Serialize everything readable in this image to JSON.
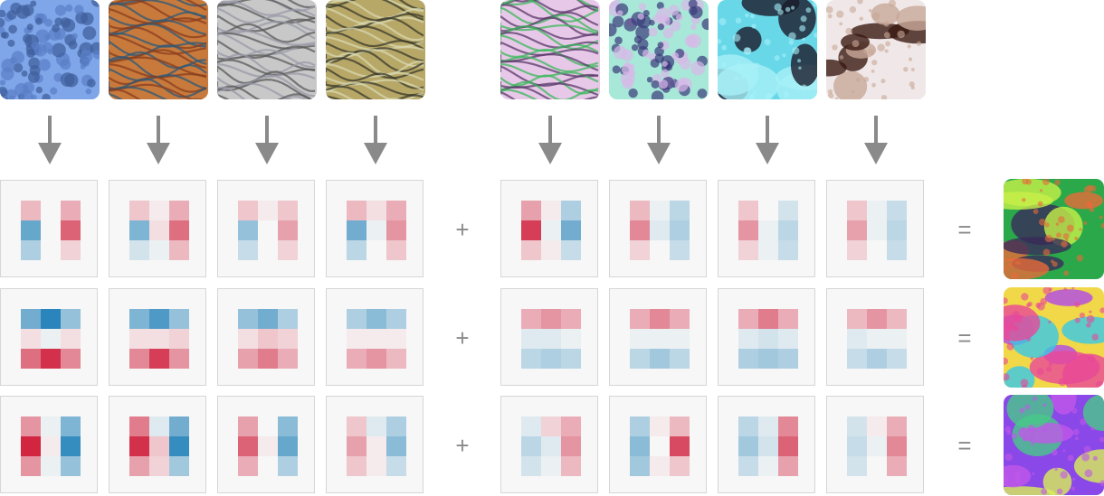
{
  "operators": {
    "plus": "+",
    "equals": "="
  },
  "colors": {
    "arrow": "#8a8a8a",
    "cell_background": "#f7f7f7",
    "cell_border": "#d6d6d6",
    "positive": "#ca0020",
    "negative": "#0571b0",
    "neutral": "#f7f7f7"
  },
  "top_images": [
    {
      "name": "texture-blue-mesh",
      "colors": [
        "#7fa6e8",
        "#5a7fc8",
        "#3d5c9a"
      ]
    },
    {
      "name": "texture-orange-stripes",
      "colors": [
        "#c87a3c",
        "#2c5a7a",
        "#8a3c1e"
      ]
    },
    {
      "name": "texture-gray-diagonal",
      "colors": [
        "#c8c8c8",
        "#5a5a5a",
        "#9a9aa8"
      ]
    },
    {
      "name": "texture-olive-waves",
      "colors": [
        "#b8a868",
        "#3a3a2a",
        "#d8d8b0"
      ]
    },
    {
      "name": "texture-magenta-green-waves",
      "colors": [
        "#e8c8e8",
        "#5a3a6a",
        "#3ab85a"
      ]
    },
    {
      "name": "texture-cyan-bubbles",
      "colors": [
        "#a8e8d8",
        "#3a3a7a",
        "#d8b8e8"
      ]
    },
    {
      "name": "texture-cyan-blobs",
      "colors": [
        "#68d8e8",
        "#1a1a2a",
        "#a8f0f8"
      ]
    },
    {
      "name": "texture-white-brown-blobs",
      "colors": [
        "#f0e8e8",
        "#3a1a12",
        "#c8a898"
      ]
    }
  ],
  "rows": [
    {
      "kernels": [
        [
          0.25,
          0,
          0.3,
          -0.6,
          0,
          0.6,
          -0.3,
          0,
          0.15
        ],
        [
          0.2,
          0.05,
          0.3,
          -0.5,
          0.1,
          0.55,
          -0.15,
          -0.05,
          0.25
        ],
        [
          0.2,
          0.05,
          0.2,
          -0.4,
          0,
          0.35,
          -0.2,
          0,
          0.15
        ],
        [
          0.25,
          0.1,
          0.3,
          -0.55,
          -0.05,
          0.4,
          -0.25,
          0,
          0.2
        ]
      ],
      "kernels_right": [
        [
          0.35,
          0.05,
          -0.3,
          0.75,
          -0.05,
          -0.55,
          0.2,
          0.05,
          -0.2
        ],
        [
          0.25,
          -0.05,
          -0.25,
          0.45,
          -0.1,
          -0.3,
          0.15,
          0,
          -0.2
        ],
        [
          0.2,
          0,
          -0.15,
          0.4,
          -0.05,
          -0.25,
          0.15,
          -0.05,
          -0.2
        ],
        [
          0.2,
          -0.05,
          -0.2,
          0.35,
          -0.05,
          -0.25,
          0.15,
          0,
          -0.2
        ]
      ],
      "result": {
        "name": "result-image-1",
        "colors": [
          "#2aa84a",
          "#c8f048",
          "#3a2a5a",
          "#e86a3a"
        ]
      }
    },
    {
      "kernels": [
        [
          -0.55,
          -0.85,
          -0.4,
          0.1,
          -0.05,
          0.1,
          0.55,
          0.8,
          0.45
        ],
        [
          -0.5,
          -0.7,
          -0.4,
          0.1,
          0.1,
          0.15,
          0.45,
          0.75,
          0.4
        ],
        [
          -0.4,
          -0.55,
          -0.3,
          0.1,
          0.2,
          0.15,
          0.35,
          0.5,
          0.3
        ],
        [
          -0.3,
          -0.45,
          -0.3,
          0.05,
          0.05,
          0.05,
          0.3,
          0.4,
          0.25
        ]
      ],
      "kernels_right": [
        [
          0.3,
          0.4,
          0.3,
          -0.1,
          -0.1,
          -0.05,
          -0.25,
          -0.3,
          -0.25
        ],
        [
          0.3,
          0.45,
          0.3,
          -0.05,
          -0.05,
          -0.05,
          -0.25,
          -0.35,
          -0.25
        ],
        [
          0.3,
          0.5,
          0.3,
          -0.1,
          -0.15,
          -0.1,
          -0.3,
          -0.35,
          -0.3
        ],
        [
          0.25,
          0.4,
          0.25,
          -0.1,
          -0.05,
          -0.05,
          -0.2,
          -0.3,
          -0.2
        ]
      ],
      "result": {
        "name": "result-image-2",
        "colors": [
          "#f0d848",
          "#b048e8",
          "#38c8e8",
          "#e84898"
        ]
      }
    },
    {
      "kernels": [
        [
          0.4,
          -0.05,
          -0.5,
          0.85,
          0.05,
          -0.8,
          0.4,
          -0.05,
          -0.4
        ],
        [
          0.5,
          -0.1,
          -0.55,
          0.8,
          0.2,
          -0.8,
          0.35,
          0.15,
          -0.35
        ],
        [
          0.35,
          0,
          -0.45,
          0.6,
          0.05,
          -0.6,
          0.3,
          0,
          -0.3
        ],
        [
          0.2,
          -0.1,
          -0.3,
          0.35,
          0.05,
          -0.45,
          0.2,
          0.05,
          -0.2
        ]
      ],
      "kernels_right": [
        [
          -0.1,
          0.15,
          0.3,
          -0.25,
          -0.1,
          0.4,
          -0.15,
          -0.05,
          0.25
        ],
        [
          -0.3,
          0.05,
          0.25,
          -0.45,
          0,
          0.7,
          -0.35,
          0.05,
          0.2
        ],
        [
          -0.25,
          -0.1,
          0.45,
          -0.35,
          -0.15,
          0.6,
          -0.2,
          -0.05,
          0.35
        ],
        [
          -0.15,
          0.05,
          0.3,
          -0.2,
          -0.05,
          0.45,
          -0.15,
          0,
          0.3
        ]
      ],
      "result": {
        "name": "result-image-3",
        "colors": [
          "#8a48e8",
          "#d8f058",
          "#48c888",
          "#c058e8"
        ]
      }
    }
  ]
}
